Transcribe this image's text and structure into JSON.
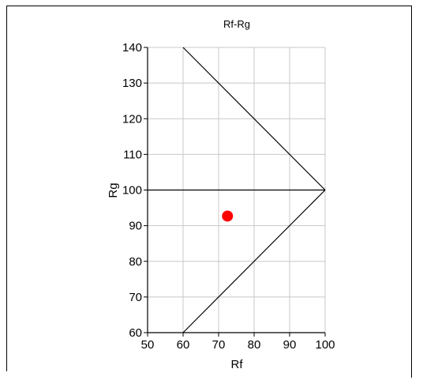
{
  "chart_data": {
    "type": "scatter",
    "title": "Rf-Rg",
    "xlabel": "Rf",
    "ylabel": "Rg",
    "xlim": [
      50,
      100
    ],
    "ylim": [
      60,
      140
    ],
    "xticks": [
      50,
      60,
      70,
      80,
      90,
      100
    ],
    "yticks": [
      60,
      70,
      80,
      90,
      100,
      110,
      120,
      130,
      140
    ],
    "grid": true,
    "points": [
      {
        "x": 72.5,
        "y": 92.7,
        "color": "#ff0000"
      }
    ],
    "reference_lines": [
      {
        "from": [
          60,
          140
        ],
        "to": [
          100,
          100
        ]
      },
      {
        "from": [
          60,
          60
        ],
        "to": [
          100,
          100
        ]
      },
      {
        "from": [
          50,
          100
        ],
        "to": [
          100,
          100
        ]
      }
    ],
    "colors": {
      "grid": "#c8c8c8",
      "axis": "#000000",
      "frame": "#000000",
      "point": "#ff0000"
    }
  }
}
